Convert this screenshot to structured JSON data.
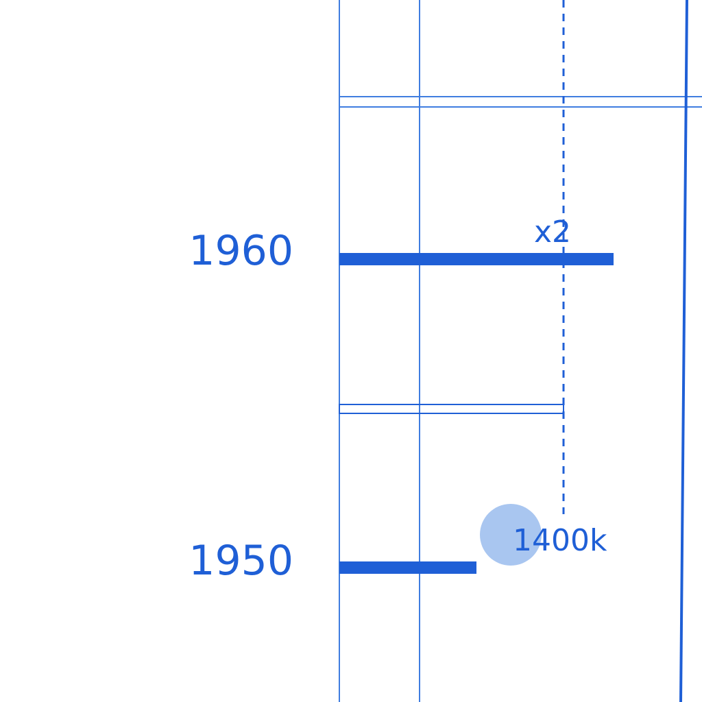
{
  "chart_data": {
    "type": "bar",
    "title": "",
    "xlabel": "",
    "ylabel": "",
    "grid": true,
    "categories": [
      "1960",
      "1950"
    ],
    "values": [
      2800,
      1400
    ],
    "series": [
      {
        "values": [
          2800,
          1400
        ]
      }
    ],
    "annotations": {
      "ratio_label": "x2",
      "value_label": "1400k"
    }
  },
  "colors": {
    "primary": "#1f5fd6",
    "grid": "#3f7de0",
    "marker": "#a9c6f0",
    "background": "#ffffff"
  }
}
